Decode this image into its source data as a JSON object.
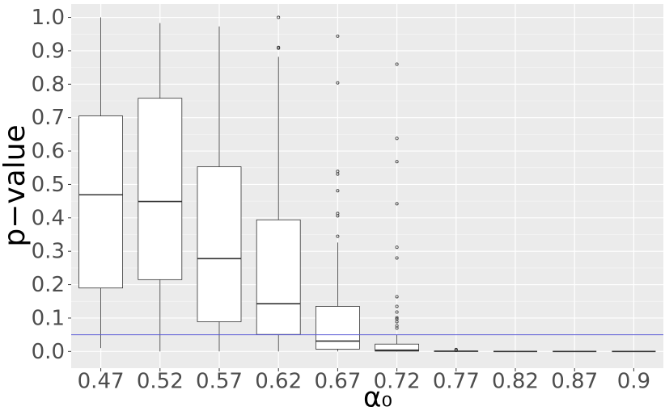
{
  "chart_data": {
    "type": "boxplot",
    "x_label": "α₀",
    "y_label": "p−value",
    "categories": [
      "0.47",
      "0.52",
      "0.57",
      "0.62",
      "0.67",
      "0.72",
      "0.77",
      "0.82",
      "0.87",
      "0.9"
    ],
    "boxes": [
      {
        "low": 0.01,
        "q1": 0.19,
        "median": 0.469,
        "q3": 0.705,
        "high": 1.0,
        "outliers": []
      },
      {
        "low": 0.0,
        "q1": 0.215,
        "median": 0.449,
        "q3": 0.758,
        "high": 0.983,
        "outliers": []
      },
      {
        "low": 0.0,
        "q1": 0.089,
        "median": 0.278,
        "q3": 0.553,
        "high": 0.973,
        "outliers": []
      },
      {
        "low": 0.0,
        "q1": 0.051,
        "median": 0.143,
        "q3": 0.394,
        "high": 0.882,
        "outliers": [
          0.908,
          0.91,
          1.0
        ]
      },
      {
        "low": 0.0,
        "q1": 0.007,
        "median": 0.031,
        "q3": 0.135,
        "high": 0.326,
        "outliers": [
          0.345,
          0.406,
          0.413,
          0.481,
          0.531,
          0.539,
          0.804,
          0.944
        ]
      },
      {
        "low": 0.0,
        "q1": 0.001,
        "median": 0.004,
        "q3": 0.022,
        "high": 0.05,
        "outliers": [
          0.07,
          0.077,
          0.089,
          0.097,
          0.101,
          0.118,
          0.135,
          0.164,
          0.28,
          0.312,
          0.442,
          0.568,
          0.638,
          0.86
        ]
      },
      {
        "low": 0.0,
        "q1": 0.0,
        "median": 0.001,
        "q3": 0.001,
        "high": 0.002,
        "outliers": [
          0.003,
          0.005,
          0.006
        ]
      },
      {
        "low": 0.0,
        "q1": 0.0,
        "median": 0.0,
        "q3": 0.0,
        "high": 0.0,
        "outliers": []
      },
      {
        "low": 0.0,
        "q1": 0.0,
        "median": 0.0,
        "q3": 0.0,
        "high": 0.0,
        "outliers": []
      },
      {
        "low": 0.0,
        "q1": 0.0,
        "median": 0.0,
        "q3": 0.0,
        "high": 0.0,
        "outliers": []
      }
    ],
    "hline": {
      "value": 0.05,
      "color": "#5b5bd6"
    },
    "ylim": [
      -0.05,
      1.04
    ],
    "yticks": [
      {
        "value": 0,
        "label": "0.0"
      },
      0.1,
      0.2,
      0.3,
      0.4,
      0.5,
      0.6,
      0.7,
      0.8,
      0.9,
      {
        "value": 1,
        "label": "1.0"
      }
    ],
    "grid": true
  }
}
